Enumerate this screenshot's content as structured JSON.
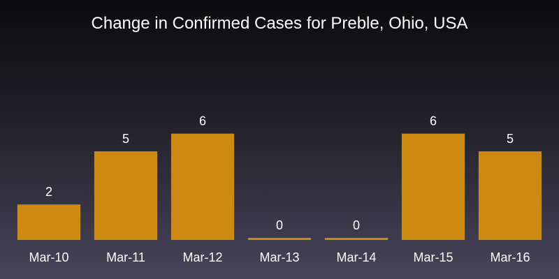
{
  "chart_data": {
    "type": "bar",
    "title": "Change in Confirmed Cases for Preble, Ohio, USA",
    "categories": [
      "Mar-10",
      "Mar-11",
      "Mar-12",
      "Mar-13",
      "Mar-14",
      "Mar-15",
      "Mar-16"
    ],
    "values": [
      2,
      5,
      6,
      0,
      0,
      6,
      5
    ],
    "ylim": [
      0,
      10
    ],
    "grid": false,
    "bar_color": "#cc8a12",
    "text_color": "#ffffff",
    "xlabel": "",
    "ylabel": ""
  }
}
